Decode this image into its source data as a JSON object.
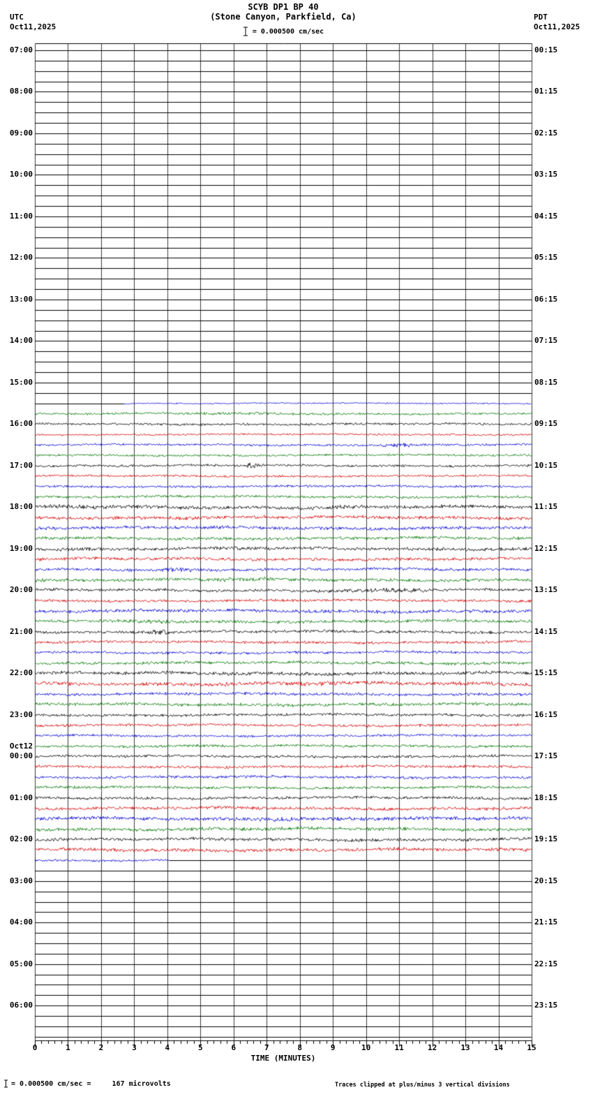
{
  "header": {
    "title": "SCYB DP1 BP 40",
    "subtitle": "(Stone Canyon, Parkfield, Ca)",
    "left_tz": "UTC",
    "left_date": "Oct11,2025",
    "right_tz": "PDT",
    "right_date": "Oct11,2025",
    "scale_text": "= 0.000500 cm/sec"
  },
  "footer": {
    "left_text": "= 0.000500 cm/sec =     167 microvolts",
    "right_text": "Traces clipped at plus/minus 3 vertical divisions"
  },
  "axis": {
    "xlabel": "TIME (MINUTES)",
    "x_ticks": [
      "0",
      "1",
      "2",
      "3",
      "4",
      "5",
      "6",
      "7",
      "8",
      "9",
      "10",
      "11",
      "12",
      "13",
      "14",
      "15"
    ]
  },
  "left_labels": [
    {
      "t": "07:00"
    },
    {
      "t": "08:00"
    },
    {
      "t": "09:00"
    },
    {
      "t": "10:00"
    },
    {
      "t": "11:00"
    },
    {
      "t": "12:00"
    },
    {
      "t": "13:00"
    },
    {
      "t": "14:00"
    },
    {
      "t": "15:00"
    },
    {
      "t": "16:00"
    },
    {
      "t": "17:00"
    },
    {
      "t": "18:00"
    },
    {
      "t": "19:00"
    },
    {
      "t": "20:00"
    },
    {
      "t": "21:00"
    },
    {
      "t": "22:00"
    },
    {
      "t": "23:00"
    },
    {
      "t": "00:00",
      "pre": "Oct12"
    },
    {
      "t": "01:00"
    },
    {
      "t": "02:00"
    },
    {
      "t": "03:00"
    },
    {
      "t": "04:00"
    },
    {
      "t": "05:00"
    },
    {
      "t": "06:00"
    }
  ],
  "right_labels": [
    "00:15",
    "01:15",
    "02:15",
    "03:15",
    "04:15",
    "05:15",
    "06:15",
    "07:15",
    "08:15",
    "09:15",
    "10:15",
    "11:15",
    "12:15",
    "13:15",
    "14:15",
    "15:15",
    "16:15",
    "17:15",
    "18:15",
    "19:15",
    "20:15",
    "21:15",
    "22:15",
    "23:15"
  ],
  "chart_data": {
    "type": "line",
    "title": "SCYB DP1 BP 40 helicorder, 24h of 15-minute trace rows",
    "x_range_minutes": [
      0,
      15
    ],
    "rows_per_hour": 4,
    "row_interval_min": 15,
    "row_start_utc": "07:00",
    "colors_cycle": [
      "#000000",
      "#d40000",
      "#0000d4",
      "#007700"
    ],
    "row_format": "[noise_half_amplitude_px, start_fraction, end_fraction]; amplitude 0 = flat/no data",
    "rows": [
      [
        0,
        0,
        1
      ],
      [
        0,
        0,
        1
      ],
      [
        0,
        0,
        1
      ],
      [
        0,
        0,
        1
      ],
      [
        0,
        0,
        1
      ],
      [
        0,
        0,
        1
      ],
      [
        0,
        0,
        1
      ],
      [
        0,
        0,
        1
      ],
      [
        0,
        0,
        1
      ],
      [
        0,
        0,
        1
      ],
      [
        0,
        0,
        1
      ],
      [
        0,
        0,
        1
      ],
      [
        0,
        0,
        1
      ],
      [
        0,
        0,
        1
      ],
      [
        0,
        0,
        1
      ],
      [
        0,
        0,
        1
      ],
      [
        0,
        0,
        1
      ],
      [
        0,
        0,
        1
      ],
      [
        0,
        0,
        1
      ],
      [
        0,
        0,
        1
      ],
      [
        0,
        0,
        1
      ],
      [
        0,
        0,
        1
      ],
      [
        0,
        0,
        1
      ],
      [
        0,
        0,
        1
      ],
      [
        0,
        0,
        1
      ],
      [
        0,
        0,
        1
      ],
      [
        0,
        0,
        1
      ],
      [
        0,
        0,
        1
      ],
      [
        0,
        0,
        1
      ],
      [
        0,
        0,
        1
      ],
      [
        0,
        0,
        1
      ],
      [
        0,
        0,
        1
      ],
      [
        0,
        0,
        1
      ],
      [
        0,
        0,
        1
      ],
      [
        1.2,
        0.18,
        1
      ],
      [
        1.8,
        0,
        1
      ],
      [
        2,
        0,
        1
      ],
      [
        1.6,
        0,
        1
      ],
      [
        1.8,
        0,
        1
      ],
      [
        1.8,
        0,
        1
      ],
      [
        2,
        0,
        1
      ],
      [
        1.8,
        0,
        1
      ],
      [
        2,
        0,
        1
      ],
      [
        2.2,
        0,
        1
      ],
      [
        3,
        0,
        1
      ],
      [
        2.8,
        0,
        1
      ],
      [
        2.8,
        0,
        1
      ],
      [
        2.6,
        0,
        1
      ],
      [
        2.8,
        0,
        1
      ],
      [
        2.6,
        0,
        1
      ],
      [
        2.4,
        0,
        1
      ],
      [
        2.6,
        0,
        1
      ],
      [
        2.4,
        0,
        1
      ],
      [
        2.2,
        0,
        1
      ],
      [
        2.8,
        0,
        1
      ],
      [
        2.6,
        0,
        1
      ],
      [
        2.4,
        0,
        1
      ],
      [
        2.4,
        0,
        1
      ],
      [
        2.2,
        0,
        1
      ],
      [
        2.4,
        0,
        1
      ],
      [
        2.8,
        0,
        1
      ],
      [
        3,
        0,
        1
      ],
      [
        2.4,
        0,
        1
      ],
      [
        2.6,
        0,
        1
      ],
      [
        2.2,
        0,
        1
      ],
      [
        2.2,
        0,
        1
      ],
      [
        2,
        0,
        1
      ],
      [
        2.2,
        0,
        1
      ],
      [
        2.2,
        0,
        1
      ],
      [
        2.2,
        0,
        1
      ],
      [
        2.2,
        0,
        1
      ],
      [
        2.2,
        0,
        1
      ],
      [
        2.4,
        0,
        1
      ],
      [
        2.6,
        0,
        1
      ],
      [
        3,
        0,
        1
      ],
      [
        2.8,
        0,
        1
      ],
      [
        2.6,
        0,
        1
      ],
      [
        2.8,
        0,
        1
      ],
      [
        1.8,
        0,
        0.27
      ],
      [
        0,
        0,
        1
      ],
      [
        0,
        0,
        1
      ],
      [
        0,
        0,
        1
      ],
      [
        0,
        0,
        1
      ],
      [
        0,
        0,
        1
      ],
      [
        0,
        0,
        1
      ],
      [
        0,
        0,
        1
      ],
      [
        0,
        0,
        1
      ],
      [
        0,
        0,
        1
      ],
      [
        0,
        0,
        1
      ],
      [
        0,
        0,
        1
      ],
      [
        0,
        0,
        1
      ],
      [
        0,
        0,
        1
      ],
      [
        0,
        0,
        1
      ],
      [
        0,
        0,
        1
      ],
      [
        0,
        0,
        1
      ],
      [
        0,
        0,
        1
      ]
    ],
    "events": [
      {
        "row": 35,
        "minute": 6.0,
        "width": 1.2,
        "mult": 1.5
      },
      {
        "row": 38,
        "minute": 11.0,
        "width": 0.4,
        "mult": 2.2
      },
      {
        "row": 40,
        "minute": 6.6,
        "width": 0.2,
        "mult": 3.5
      },
      {
        "row": 44,
        "minute": 1.0,
        "width": 0.8,
        "mult": 1.4
      },
      {
        "row": 50,
        "minute": 4.4,
        "width": 0.5,
        "mult": 1.8
      },
      {
        "row": 51,
        "minute": 6.5,
        "width": 1.5,
        "mult": 1.4
      },
      {
        "row": 52,
        "minute": 10.5,
        "width": 1.2,
        "mult": 1.7
      },
      {
        "row": 55,
        "minute": 3.5,
        "width": 0.6,
        "mult": 1.6
      },
      {
        "row": 56,
        "minute": 3.8,
        "width": 0.3,
        "mult": 2.2
      },
      {
        "row": 61,
        "minute": 8.0,
        "width": 2.0,
        "mult": 1.2
      },
      {
        "row": 74,
        "minute": 7.0,
        "width": 2.5,
        "mult": 1.15
      }
    ]
  }
}
